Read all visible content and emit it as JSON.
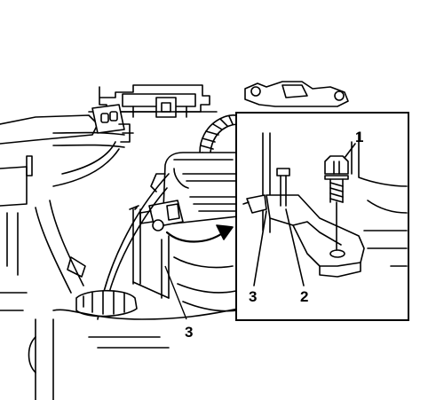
{
  "callouts": {
    "bolt_label": "1",
    "bracket_label": "2",
    "sensor_detail_label": "3",
    "sensor_main_label": "3"
  },
  "colors": {
    "line": "#000000",
    "background": "#ffffff",
    "shade": "#d9d9d9"
  }
}
